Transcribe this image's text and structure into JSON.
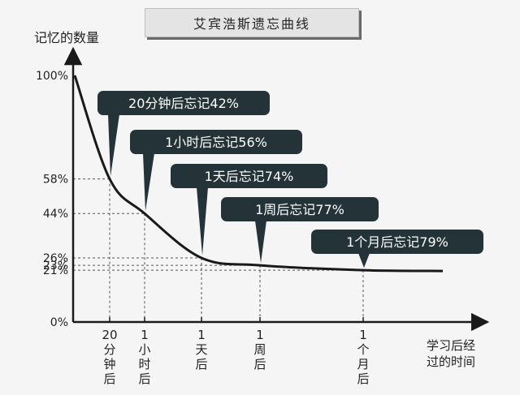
{
  "chart_data": {
    "type": "line",
    "title": "艾宾浩斯遗忘曲线",
    "ylabel": "记忆的数量",
    "xlabel_lines": [
      "学习后经",
      "过的时间"
    ],
    "ylim": [
      0,
      100
    ],
    "y_ticks": [
      "100%",
      "58%",
      "44%",
      "26%",
      "23%",
      "21%",
      "0%"
    ],
    "y_tick_values": [
      100,
      58,
      44,
      26,
      23,
      21,
      0
    ],
    "points": [
      {
        "label_lines": [
          "20",
          "分",
          "钟",
          "后"
        ],
        "y": 58,
        "callout": "20分钟后忘记42%"
      },
      {
        "label_lines": [
          "1",
          "小",
          "时",
          "后"
        ],
        "y": 44,
        "callout": "1小时后忘记56%"
      },
      {
        "label_lines": [
          "1",
          "天",
          "后"
        ],
        "y": 26,
        "callout": "1天后忘记74%"
      },
      {
        "label_lines": [
          "1",
          "周",
          "后"
        ],
        "y": 23,
        "callout": "1周后忘记77%"
      },
      {
        "label_lines": [
          "1",
          "个",
          "月",
          "后"
        ],
        "y": 21,
        "callout": "1个月后忘记79%"
      }
    ],
    "colors": {
      "curve": "#1a1a1a",
      "callout_bg": "#243338",
      "callout_text": "#ffffff",
      "guide": "#555555"
    },
    "grid": false
  }
}
